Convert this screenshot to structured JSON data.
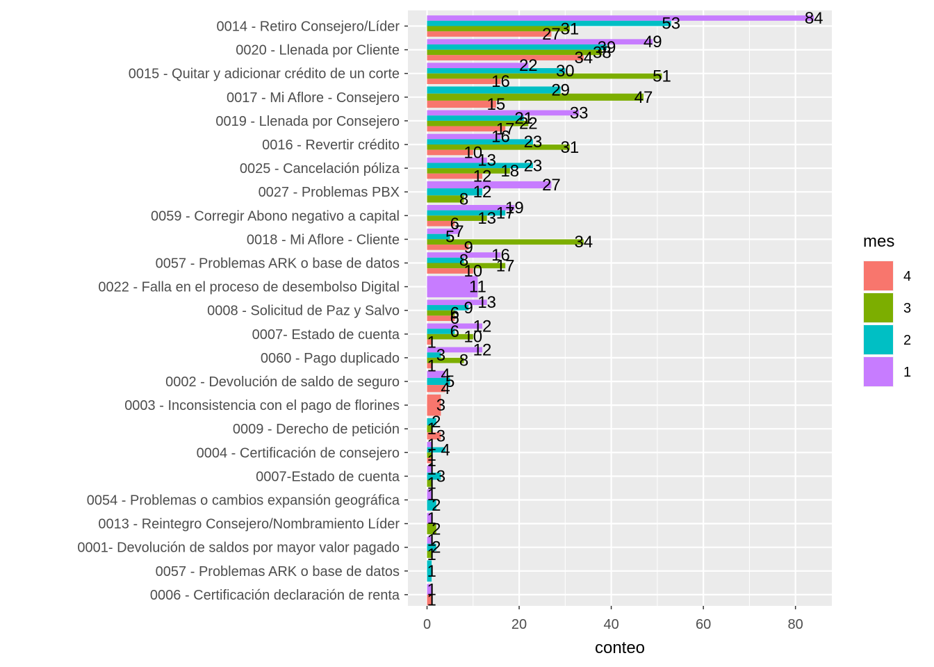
{
  "chart_data": {
    "type": "bar",
    "orientation": "horizontal",
    "xlabel": "conteo",
    "ylabel": "",
    "xlim": [
      0,
      87.5
    ],
    "xticks": [
      0,
      20,
      40,
      60,
      80
    ],
    "grid": true,
    "legend": {
      "title": "mes",
      "position": "right"
    },
    "categories": [
      "0014 - Retiro Consejero/Líder",
      "0020 - Llenada por Cliente",
      "0015 - Quitar y adicionar crédito de un corte",
      "0017 - Mi Aflore - Consejero",
      "0019 - Llenada por Consejero",
      "0016 - Revertir crédito",
      "0025 - Cancelación póliza",
      "0027 - Problemas PBX",
      "0059 - Corregir Abono negativo a capital",
      "0018 - Mi Aflore - Cliente",
      "0057  - Problemas ARK o base de datos",
      "0022 - Falla en el proceso de desembolso Digital",
      "0008 - Solicitud de Paz y Salvo",
      "0007- Estado de cuenta",
      "0060 - Pago duplicado",
      "0002 - Devolución de saldo de seguro",
      "0003 - Inconsistencia con el pago de florines",
      "0009 - Derecho de petición",
      "0004 - Certificación de consejero",
      "0007-Estado de cuenta",
      "0054 - Problemas o cambios expansión geográfica",
      "0013 - Reintegro Consejero/Nombramiento Líder",
      "0001- Devolución de saldos por mayor valor pagado",
      "0057 - Problemas ARK o base de datos",
      "0006 - Certificación declaración de renta"
    ],
    "series": [
      {
        "name": "1",
        "color": "#C77CFF",
        "values": [
          84,
          49,
          22,
          null,
          33,
          16,
          13,
          27,
          19,
          7,
          16,
          11,
          13,
          12,
          12,
          4,
          null,
          null,
          1,
          1,
          1,
          1,
          1,
          null,
          1
        ]
      },
      {
        "name": "2",
        "color": "#00BFC4",
        "values": [
          53,
          39,
          30,
          29,
          21,
          23,
          23,
          12,
          17,
          5,
          8,
          null,
          9,
          6,
          3,
          5,
          null,
          2,
          4,
          3,
          2,
          null,
          2,
          1,
          null
        ]
      },
      {
        "name": "3",
        "color": "#7CAE00",
        "values": [
          31,
          38,
          51,
          47,
          22,
          31,
          18,
          8,
          13,
          34,
          17,
          null,
          6,
          10,
          8,
          null,
          null,
          1,
          1,
          1,
          null,
          2,
          1,
          null,
          null
        ]
      },
      {
        "name": "4",
        "color": "#F8766D",
        "values": [
          27,
          34,
          16,
          15,
          17,
          10,
          12,
          null,
          6,
          9,
          10,
          null,
          6,
          1,
          1,
          4,
          3,
          3,
          1,
          null,
          null,
          null,
          null,
          null,
          1
        ]
      }
    ],
    "legend_order": [
      "4",
      "3",
      "2",
      "1"
    ]
  }
}
